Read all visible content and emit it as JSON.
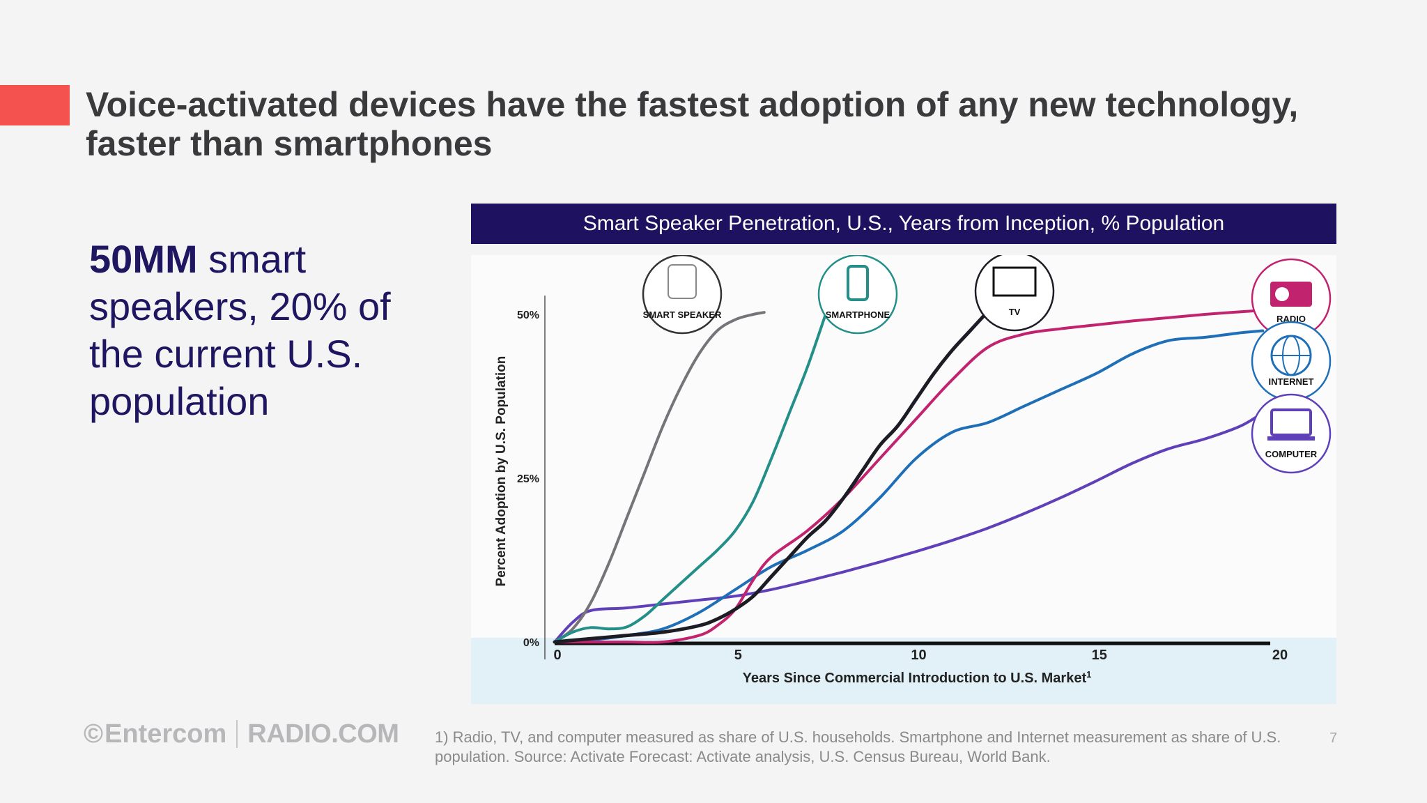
{
  "slide": {
    "title_line1": "Voice-activated devices have the fastest adoption of any new technology,",
    "title_line2": "faster than smartphones",
    "stat_bold": "50MM",
    "stat_rest": " smart speakers, 20% of the current U.S. population",
    "footnote": "1) Radio, TV, and computer measured as share of U.S. households. Smartphone and Internet measurement as share of U.S. population. Source: Activate Forecast: Activate analysis, U.S. Census Bureau, World Bank.",
    "page_number": "7",
    "logo_brand": "Entercom",
    "logo_symbol": "©",
    "logo_partner": "RADIO.COM",
    "colors": {
      "accent": "#f4524f",
      "header_bg": "#1d1160",
      "stat_text": "#1e1660"
    }
  },
  "chart_data": {
    "type": "line",
    "title": "Smart Speaker Penetration, U.S., Years from Inception, % Population",
    "xlabel": "Years Since Commercial Introduction to U.S. Market",
    "xlabel_superscript": "1",
    "ylabel": "Percent Adoption by U.S. Population",
    "xlim": [
      0,
      20
    ],
    "ylim": [
      0,
      50
    ],
    "x_ticks": [
      0,
      5,
      10,
      15,
      20
    ],
    "x_tick_labels": [
      "0",
      "5",
      "10",
      "15",
      "20"
    ],
    "y_ticks": [
      0,
      25,
      50
    ],
    "y_tick_labels": [
      "0%",
      "25%",
      "50%"
    ],
    "grid": false,
    "series": [
      {
        "name": "SMART SPEAKER",
        "color": "#767478",
        "icon": "smart-speaker-icon",
        "x": [
          0,
          0.5,
          1,
          1.5,
          2,
          2.5,
          3,
          3.5,
          4,
          4.5,
          5,
          5.5,
          5.8
        ],
        "y": [
          0,
          2,
          6,
          12,
          19,
          26,
          33,
          39,
          44,
          47.5,
          49.2,
          50,
          50.3
        ]
      },
      {
        "name": "SMARTPHONE",
        "color": "#238f88",
        "icon": "smartphone-icon",
        "x": [
          0,
          0.5,
          1,
          1.5,
          2,
          2.5,
          3,
          3.5,
          4,
          4.5,
          5,
          5.5,
          6,
          6.5,
          7,
          7.5
        ],
        "y": [
          0,
          1.5,
          2.2,
          2,
          2.3,
          4,
          6.5,
          9,
          11.5,
          14,
          17,
          21.5,
          28,
          35,
          42,
          50
        ]
      },
      {
        "name": "TV",
        "color": "#1c1c24",
        "icon": "tv-icon",
        "x": [
          0,
          1,
          2,
          3,
          4,
          4.5,
          5,
          5.5,
          6,
          6.5,
          7,
          7.5,
          8,
          8.5,
          9,
          9.5,
          10,
          10.5,
          11,
          11.5,
          12
        ],
        "y": [
          0,
          0.5,
          1,
          1.5,
          2.5,
          3.5,
          5,
          7,
          10,
          13,
          16,
          18.5,
          22,
          26,
          30,
          33,
          37,
          41,
          44.5,
          47.5,
          50.5
        ]
      },
      {
        "name": "RADIO",
        "color": "#c2236e",
        "icon": "radio-icon",
        "x": [
          0,
          1,
          2,
          3,
          4,
          4.5,
          5,
          5.5,
          6,
          7,
          8,
          9,
          10,
          11,
          12,
          13,
          14,
          15,
          16,
          17,
          18,
          19,
          19.6
        ],
        "y": [
          0,
          0,
          0,
          0,
          1,
          2.5,
          5,
          9.5,
          13,
          17,
          22,
          28,
          34,
          40,
          45,
          47,
          47.8,
          48.4,
          49,
          49.5,
          50,
          50.4,
          50.6
        ]
      },
      {
        "name": "INTERNET",
        "color": "#1f6fb8",
        "icon": "internet-globe-icon",
        "x": [
          0,
          1,
          2,
          3,
          4,
          5,
          6,
          7,
          8,
          9,
          10,
          11,
          12,
          13,
          14,
          15,
          16,
          17,
          18,
          19,
          19.6
        ],
        "y": [
          0,
          0.3,
          1,
          2,
          4.5,
          8,
          11.5,
          14,
          17,
          22,
          28,
          32,
          33.5,
          36,
          38.5,
          41,
          44,
          46,
          46.5,
          47.2,
          47.5
        ]
      },
      {
        "name": "COMPUTER",
        "color": "#6040b8",
        "icon": "computer-monitor-icon",
        "x": [
          0,
          0.5,
          1,
          2,
          3,
          4,
          5,
          6,
          7,
          8,
          9,
          10,
          11,
          12,
          13,
          14,
          15,
          16,
          17,
          18,
          19,
          19.6
        ],
        "y": [
          0,
          3,
          4.8,
          5.2,
          5.8,
          6.4,
          7,
          8,
          9.3,
          10.7,
          12.2,
          13.8,
          15.5,
          17.4,
          19.6,
          22,
          24.6,
          27.3,
          29.5,
          31,
          33,
          35
        ]
      }
    ]
  }
}
